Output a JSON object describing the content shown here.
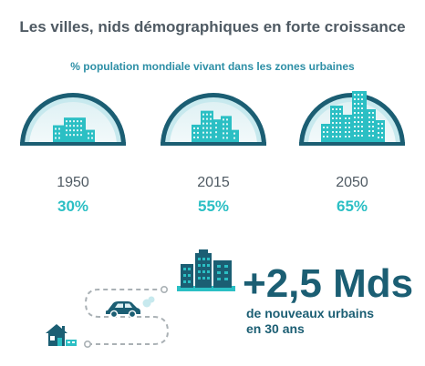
{
  "title": "Les villes, nids démographiques en forte croissance",
  "subtitle": "% population mondiale vivant dans les zones urbaines",
  "colors": {
    "dark_teal": "#1b5e73",
    "teal": "#2bbfc4",
    "light_teal": "#c7e9ee",
    "dome_fill": "#e7f4f6",
    "text_gray": "#4f5a63",
    "subtitle_blue": "#2d8fa6",
    "path_gray": "#aab1b5"
  },
  "chart_data": {
    "type": "bar",
    "title": "% population mondiale vivant dans les zones urbaines",
    "categories": [
      "1950",
      "2015",
      "2050"
    ],
    "values": [
      30,
      55,
      65
    ],
    "value_labels": [
      "30%",
      "55%",
      "65%"
    ],
    "unit": "%"
  },
  "stat": {
    "big_number": "+2,5 Mds",
    "description_line1": "de nouveaux urbains",
    "description_line2": "en 30 ans"
  },
  "icons": [
    "city-dome-icon",
    "city-dome-icon",
    "city-dome-icon",
    "building-icon",
    "car-icon",
    "house-icon"
  ]
}
